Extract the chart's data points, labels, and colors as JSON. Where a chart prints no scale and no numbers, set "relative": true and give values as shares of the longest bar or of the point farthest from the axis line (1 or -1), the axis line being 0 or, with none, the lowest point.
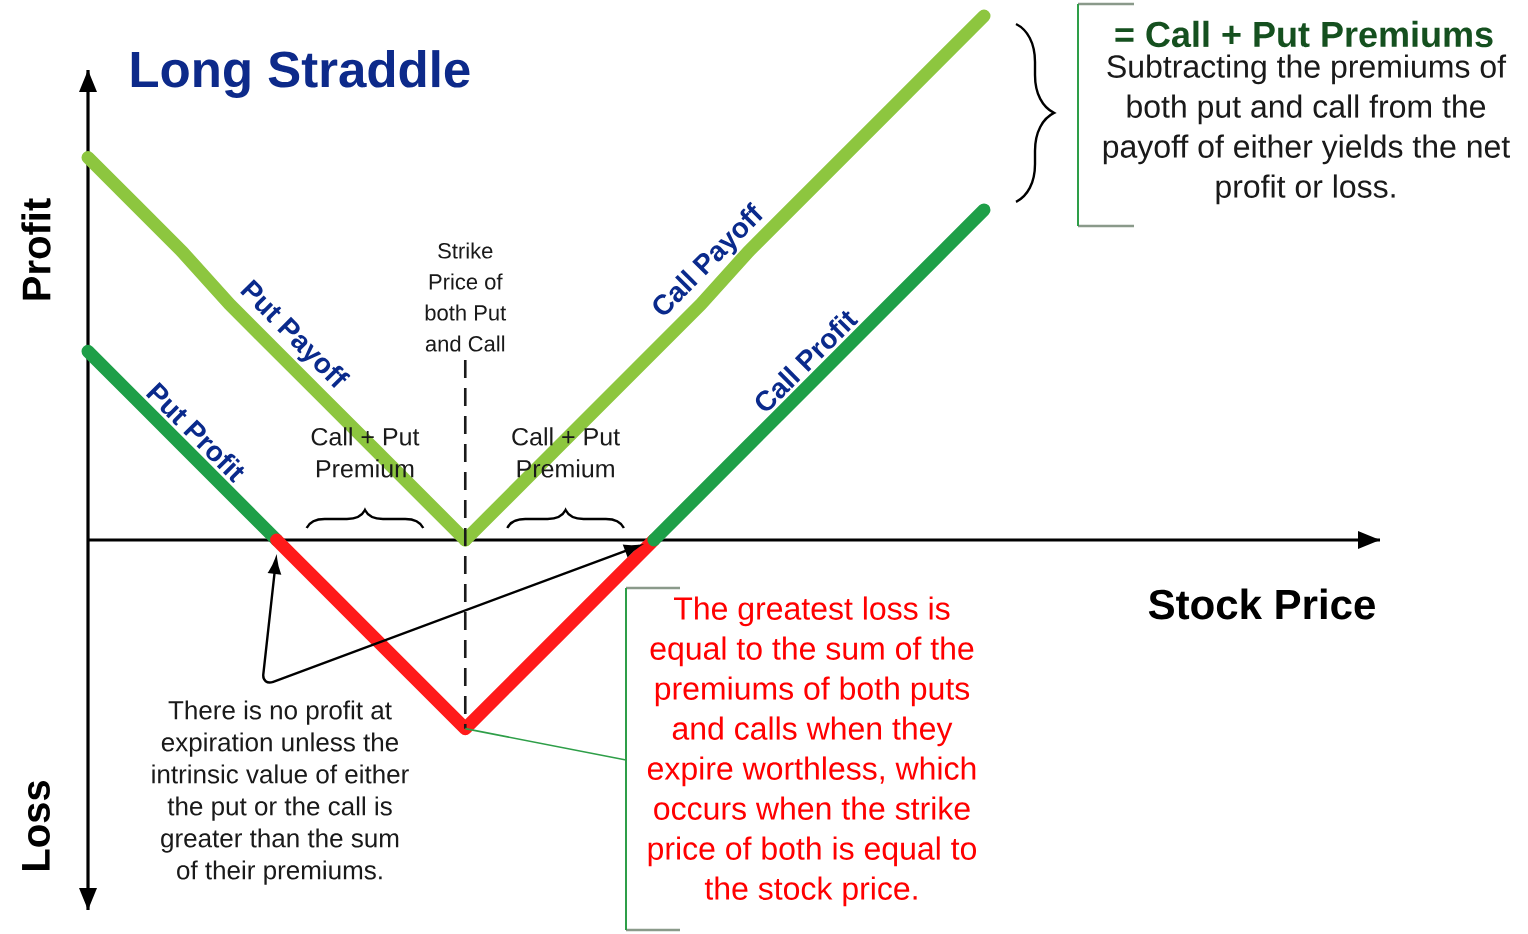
{
  "chart_data": {
    "type": "line",
    "title": "Long Straddle",
    "xlabel": "Stock Price",
    "ylabel": "Profit",
    "relative": true,
    "categories": [
      null,
      null,
      null,
      null,
      null,
      null,
      null,
      null,
      null,
      null,
      null,
      null,
      null,
      null,
      null,
      null,
      null,
      null,
      null,
      null
    ],
    "series": [
      {
        "name": "Put Payoff",
        "color": "#8dc63f",
        "values": [
          0.73,
          0.64,
          0.55,
          0.45,
          0.36,
          0.27,
          0.18,
          0.09,
          0,
          null,
          null,
          null,
          null,
          null,
          null,
          null,
          null,
          null,
          null,
          null
        ]
      },
      {
        "name": "Call Payoff",
        "color": "#8dc63f",
        "values": [
          null,
          null,
          null,
          null,
          null,
          null,
          null,
          null,
          0,
          0.09,
          0.18,
          0.27,
          0.36,
          0.45,
          0.55,
          0.64,
          0.73,
          0.82,
          0.91,
          1
        ]
      },
      {
        "name": "Put Profit",
        "color": "#1e9f48",
        "values": [
          0.36,
          0.27,
          0.18,
          0.09,
          0,
          null,
          null,
          null,
          null,
          null,
          null,
          null,
          null,
          null,
          null,
          null,
          null,
          null,
          null,
          null
        ]
      },
      {
        "color": "#ff1a1a",
        "values": [
          null,
          null,
          null,
          null,
          0,
          -0.09,
          -0.18,
          -0.27,
          -0.36,
          -0.27,
          -0.18,
          -0.09,
          0,
          null,
          null,
          null,
          null,
          null,
          null,
          null
        ]
      },
      {
        "name": "Call Profit",
        "color": "#1e9f48",
        "values": [
          null,
          null,
          null,
          null,
          null,
          null,
          null,
          null,
          null,
          null,
          null,
          null,
          0,
          0.09,
          0.18,
          0.27,
          0.36,
          0.45,
          0.54,
          0.63
        ]
      }
    ],
    "annotations": [
      "Strike Price of both Put and Call",
      "Call + Put Premium",
      "Call + Put Premium",
      "= Call + Put Premiums",
      "Subtracting the premiums of both put and call from the payoff of either yields the net profit or loss.",
      "There is no profit at expiration unless the intrinsic value of either the put or the call is greater than the sum of their premiums.",
      "The greatest loss is equal to the sum of the premiums of both puts and calls when they expire worthless, which occurs when the strike price of both is equal to the stock price.",
      "Loss"
    ]
  }
}
